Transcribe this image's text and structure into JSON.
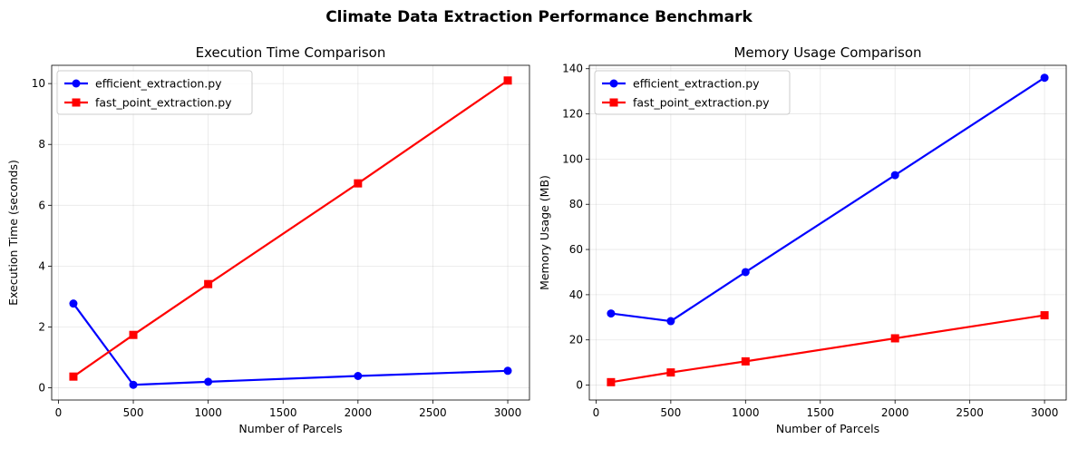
{
  "figure": {
    "title": "Climate Data Extraction Performance Benchmark"
  },
  "chart_data": [
    {
      "type": "line",
      "title": "Execution Time Comparison",
      "xlabel": "Number of Parcels",
      "ylabel": "Execution Time (seconds)",
      "x": [
        100,
        500,
        1000,
        2000,
        3000
      ],
      "xlim": [
        -45,
        3145
      ],
      "ylim": [
        -0.4,
        10.6
      ],
      "xticks": [
        0,
        500,
        1000,
        1500,
        2000,
        2500,
        3000
      ],
      "yticks": [
        0,
        2,
        4,
        6,
        8,
        10
      ],
      "grid": true,
      "legend_position": "upper-left",
      "series": [
        {
          "name": "efficient_extraction.py",
          "color": "#0000ff",
          "marker": "circle",
          "values": [
            2.77,
            0.1,
            0.2,
            0.39,
            0.56
          ]
        },
        {
          "name": "fast_point_extraction.py",
          "color": "#ff0000",
          "marker": "square",
          "values": [
            0.37,
            1.74,
            3.41,
            6.72,
            10.1
          ]
        }
      ]
    },
    {
      "type": "line",
      "title": "Memory Usage Comparison",
      "xlabel": "Number of Parcels",
      "ylabel": "Memory Usage (MB)",
      "x": [
        100,
        500,
        1000,
        2000,
        3000
      ],
      "xlim": [
        -45,
        3145
      ],
      "ylim": [
        -6.6,
        141.5
      ],
      "xticks": [
        0,
        500,
        1000,
        1500,
        2000,
        2500,
        3000
      ],
      "yticks": [
        0,
        20,
        40,
        60,
        80,
        100,
        120,
        140
      ],
      "grid": true,
      "legend_position": "upper-left",
      "series": [
        {
          "name": "efficient_extraction.py",
          "color": "#0000ff",
          "marker": "circle",
          "values": [
            31.7,
            28.3,
            50.0,
            92.9,
            136.0
          ]
        },
        {
          "name": "fast_point_extraction.py",
          "color": "#ff0000",
          "marker": "square",
          "values": [
            1.3,
            5.6,
            10.5,
            20.7,
            30.9
          ]
        }
      ]
    }
  ]
}
